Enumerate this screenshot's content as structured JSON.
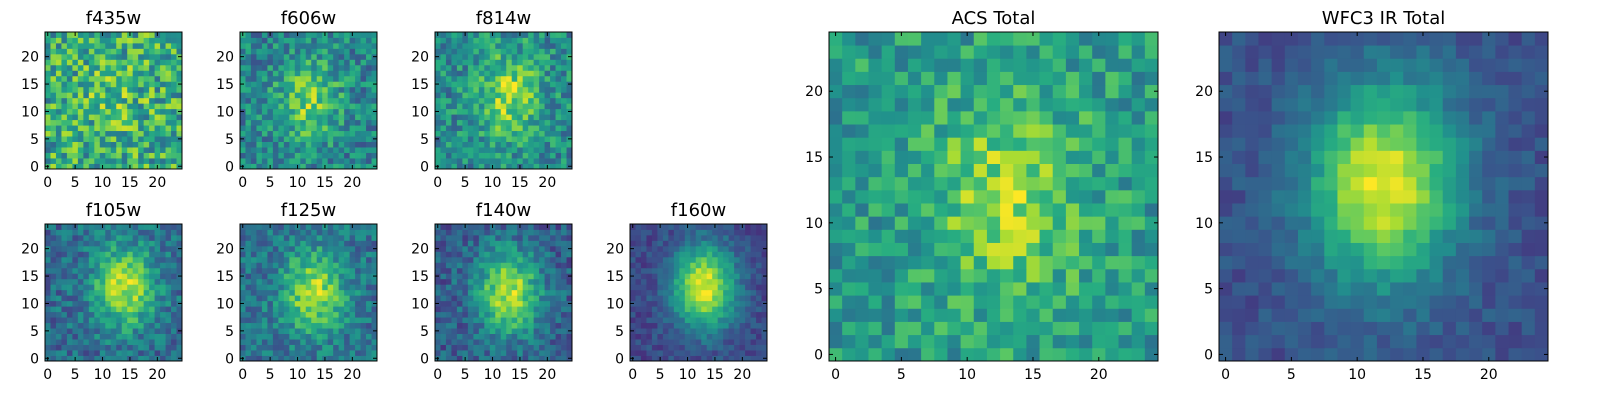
{
  "colormap": "viridis",
  "chart_data": [
    {
      "type": "heatmap",
      "title": "f435w",
      "size": 25,
      "xticks": [
        0,
        5,
        10,
        15,
        20
      ],
      "yticks": [
        0,
        5,
        10,
        15,
        20
      ],
      "peak": [
        12,
        12
      ],
      "signal": 0.1,
      "noise": 0.55,
      "base": 0.62
    },
    {
      "type": "heatmap",
      "title": "f606w",
      "size": 25,
      "xticks": [
        0,
        5,
        10,
        15,
        20
      ],
      "yticks": [
        0,
        5,
        10,
        15,
        20
      ],
      "peak": [
        12,
        12
      ],
      "signal": 0.35,
      "noise": 0.4,
      "base": 0.45
    },
    {
      "type": "heatmap",
      "title": "f814w",
      "size": 25,
      "xticks": [
        0,
        5,
        10,
        15,
        20
      ],
      "yticks": [
        0,
        5,
        10,
        15,
        20
      ],
      "peak": [
        13,
        13
      ],
      "signal": 0.38,
      "noise": 0.4,
      "base": 0.48
    },
    {
      "type": "heatmap",
      "title": "f105w",
      "size": 25,
      "xticks": [
        0,
        5,
        10,
        15,
        20
      ],
      "yticks": [
        0,
        5,
        10,
        15,
        20
      ],
      "peak": [
        14,
        13
      ],
      "signal": 0.55,
      "noise": 0.32,
      "base": 0.35
    },
    {
      "type": "heatmap",
      "title": "f125w",
      "size": 25,
      "xticks": [
        0,
        5,
        10,
        15,
        20
      ],
      "yticks": [
        0,
        5,
        10,
        15,
        20
      ],
      "peak": [
        13,
        12
      ],
      "signal": 0.5,
      "noise": 0.32,
      "base": 0.38
    },
    {
      "type": "heatmap",
      "title": "f140w",
      "size": 25,
      "xticks": [
        0,
        5,
        10,
        15,
        20
      ],
      "yticks": [
        0,
        5,
        10,
        15,
        20
      ],
      "peak": [
        13,
        12
      ],
      "signal": 0.6,
      "noise": 0.3,
      "base": 0.3
    },
    {
      "type": "heatmap",
      "title": "f160w",
      "size": 25,
      "xticks": [
        0,
        5,
        10,
        15,
        20
      ],
      "yticks": [
        0,
        5,
        10,
        15,
        20
      ],
      "peak": [
        13,
        13
      ],
      "signal": 0.75,
      "noise": 0.18,
      "base": 0.22
    },
    {
      "type": "heatmap",
      "title": "ACS Total",
      "size": 25,
      "xticks": [
        0,
        5,
        10,
        15,
        20
      ],
      "yticks": [
        0,
        5,
        10,
        15,
        20
      ],
      "peak": [
        13,
        12
      ],
      "signal": 0.3,
      "noise": 0.35,
      "base": 0.55
    },
    {
      "type": "heatmap",
      "title": "WFC3 IR Total",
      "size": 25,
      "xticks": [
        0,
        5,
        10,
        15,
        20
      ],
      "yticks": [
        0,
        5,
        10,
        15,
        20
      ],
      "peak": [
        12,
        13
      ],
      "signal": 0.72,
      "noise": 0.15,
      "base": 0.25
    }
  ]
}
